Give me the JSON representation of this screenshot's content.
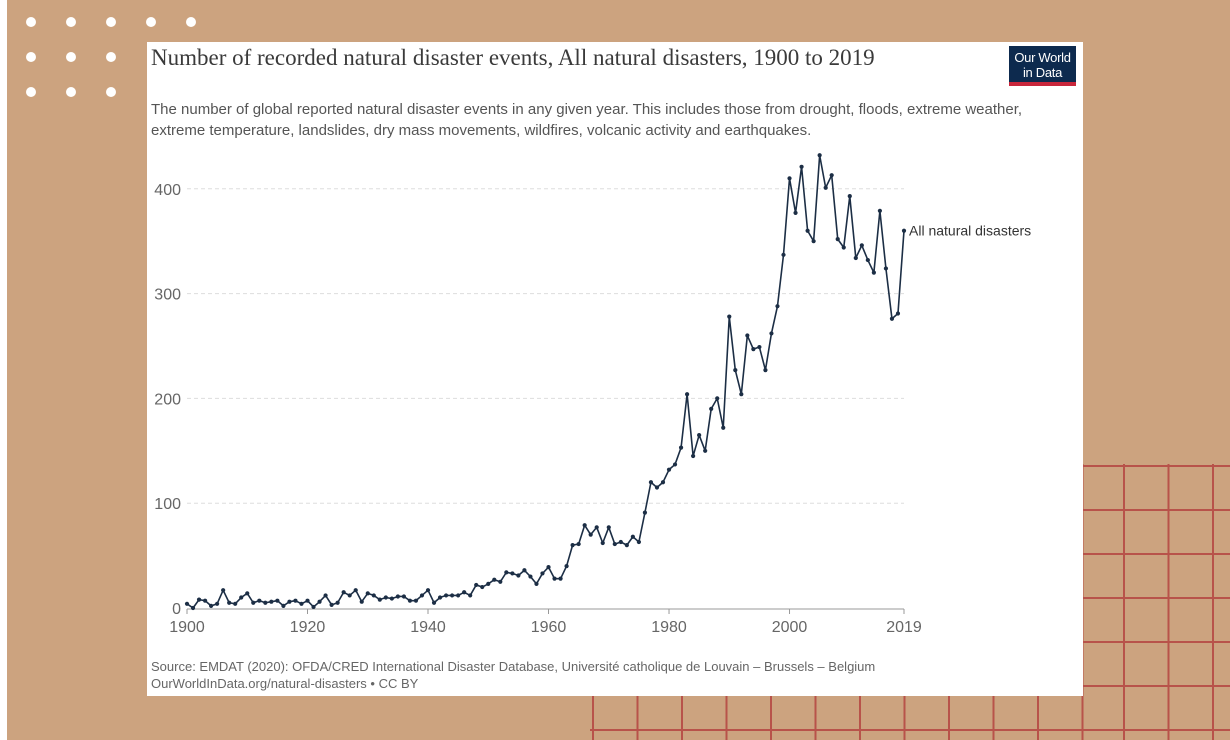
{
  "chart_data": {
    "type": "line",
    "title": "Number of recorded natural disaster events, All natural disasters, 1900 to 2019",
    "subtitle": "The number of global reported natural disaster events in any given year. This includes those from drought, floods, extreme weather, extreme temperature, landslides, dry mass movements, wildfires, volcanic activity and earthquakes.",
    "source_line1": "Source: EMDAT (2020): OFDA/CRED International Disaster Database, Université catholique de Louvain – Brussels – Belgium",
    "source_line2": "OurWorldInData.org/natural-disasters • CC BY",
    "logo_line1": "Our World",
    "logo_line2": "in Data",
    "xlim": [
      1900,
      2019
    ],
    "ylim": [
      0,
      420
    ],
    "x_ticks": [
      1900,
      1920,
      1940,
      1960,
      1980,
      2000,
      2019
    ],
    "x_tick_labels": [
      "1900",
      "1920",
      "1940",
      "1960",
      "1980",
      "2000",
      "2019"
    ],
    "y_ticks": [
      0,
      100,
      200,
      300,
      400
    ],
    "y_tick_labels": [
      "0",
      "100",
      "200",
      "300",
      "400"
    ],
    "grid": "horizontal dashed",
    "legend": "inline label at end of line",
    "line_color": "#1c2e45",
    "series": [
      {
        "name": "All natural disasters",
        "x": [
          1900,
          1901,
          1902,
          1903,
          1904,
          1905,
          1906,
          1907,
          1908,
          1909,
          1910,
          1911,
          1912,
          1913,
          1914,
          1915,
          1916,
          1917,
          1918,
          1919,
          1920,
          1921,
          1922,
          1923,
          1924,
          1925,
          1926,
          1927,
          1928,
          1929,
          1930,
          1931,
          1932,
          1933,
          1934,
          1935,
          1936,
          1937,
          1938,
          1939,
          1940,
          1941,
          1942,
          1943,
          1944,
          1945,
          1946,
          1947,
          1948,
          1949,
          1950,
          1951,
          1952,
          1953,
          1954,
          1955,
          1956,
          1957,
          1958,
          1959,
          1960,
          1961,
          1962,
          1963,
          1964,
          1965,
          1966,
          1967,
          1968,
          1969,
          1970,
          1971,
          1972,
          1973,
          1974,
          1975,
          1976,
          1977,
          1978,
          1979,
          1980,
          1981,
          1982,
          1983,
          1984,
          1985,
          1986,
          1987,
          1988,
          1989,
          1990,
          1991,
          1992,
          1993,
          1994,
          1995,
          1996,
          1997,
          1998,
          1999,
          2000,
          2001,
          2002,
          2003,
          2004,
          2005,
          2006,
          2007,
          2008,
          2009,
          2010,
          2011,
          2012,
          2013,
          2014,
          2015,
          2016,
          2017,
          2018,
          2019
        ],
        "values": [
          4,
          0,
          8,
          7,
          2,
          4,
          17,
          5,
          4,
          10,
          14,
          5,
          7,
          5,
          6,
          7,
          2,
          6,
          7,
          4,
          7,
          1,
          6,
          12,
          3,
          5,
          15,
          12,
          17,
          6,
          14,
          12,
          8,
          10,
          9,
          11,
          11,
          7,
          7,
          12,
          17,
          5,
          10,
          12,
          12,
          12,
          15,
          12,
          22,
          20,
          23,
          27,
          25,
          34,
          33,
          31,
          36,
          30,
          23,
          33,
          39,
          28,
          28,
          40,
          60,
          61,
          79,
          70,
          77,
          62,
          77,
          61,
          63,
          60,
          68,
          63,
          91,
          120,
          115,
          120,
          132,
          137,
          153,
          204,
          145,
          165,
          150,
          190,
          200,
          172,
          278,
          227,
          204,
          260,
          247,
          249,
          227,
          262,
          288,
          337,
          410,
          377,
          421,
          360,
          350,
          432,
          401,
          413,
          352,
          344,
          393,
          334,
          346,
          332,
          320,
          379,
          324,
          276,
          281,
          360
        ]
      }
    ]
  }
}
